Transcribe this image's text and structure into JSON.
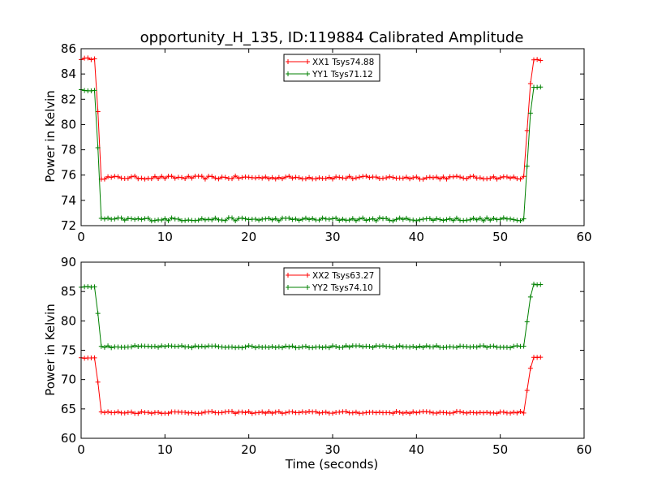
{
  "figure": {
    "title": "opportunity_H_135, ID:119884 Calibrated Amplitude"
  },
  "chart_data": [
    {
      "type": "line",
      "title": "opportunity_H_135, ID:119884 Calibrated Amplitude",
      "xlabel": "",
      "ylabel": "Power in Kelvin",
      "xlim": [
        0,
        60
      ],
      "ylim": [
        72,
        86
      ],
      "xticks": [
        "0",
        "10",
        "20",
        "30",
        "40",
        "50",
        "60"
      ],
      "yticks": [
        "72",
        "74",
        "76",
        "78",
        "80",
        "82",
        "84",
        "86"
      ],
      "grid": false,
      "legend_position": "top-center",
      "series": [
        {
          "name": "XX1 Tsys74.88",
          "color": "#ff0000",
          "profile": {
            "t_on": 1.6,
            "t_drop_end": 2.2,
            "t_rise_start": 52.8,
            "t_rise_end": 53.8,
            "t_end": 55.0,
            "high_start": 85.2,
            "low": 75.8,
            "high_end": 85.1,
            "marker": "plus"
          }
        },
        {
          "name": "YY1 Tsys71.12",
          "color": "#008000",
          "profile": {
            "t_on": 1.6,
            "t_drop_end": 2.2,
            "t_rise_start": 52.8,
            "t_rise_end": 53.8,
            "t_end": 55.0,
            "high_start": 82.7,
            "low": 72.5,
            "high_end": 83.0,
            "marker": "plus"
          }
        }
      ]
    },
    {
      "type": "line",
      "title": "",
      "xlabel": "Time (seconds)",
      "ylabel": "Power in Kelvin",
      "xlim": [
        0,
        60
      ],
      "ylim": [
        60,
        90
      ],
      "xticks": [
        "0",
        "10",
        "20",
        "30",
        "40",
        "50",
        "60"
      ],
      "yticks": [
        "60",
        "65",
        "70",
        "75",
        "80",
        "85",
        "90"
      ],
      "grid": false,
      "legend_position": "top-center",
      "series": [
        {
          "name": "XX2 Tsys63.27",
          "color": "#ff0000",
          "profile": {
            "t_on": 1.6,
            "t_drop_end": 2.2,
            "t_rise_start": 52.8,
            "t_rise_end": 53.8,
            "t_end": 55.0,
            "high_start": 73.7,
            "low": 64.4,
            "high_end": 73.8,
            "marker": "plus"
          }
        },
        {
          "name": "YY2 Tsys74.10",
          "color": "#008000",
          "profile": {
            "t_on": 1.6,
            "t_drop_end": 2.2,
            "t_rise_start": 52.8,
            "t_rise_end": 53.8,
            "t_end": 55.0,
            "high_start": 85.8,
            "low": 75.6,
            "high_end": 86.2,
            "marker": "plus"
          }
        }
      ]
    }
  ]
}
